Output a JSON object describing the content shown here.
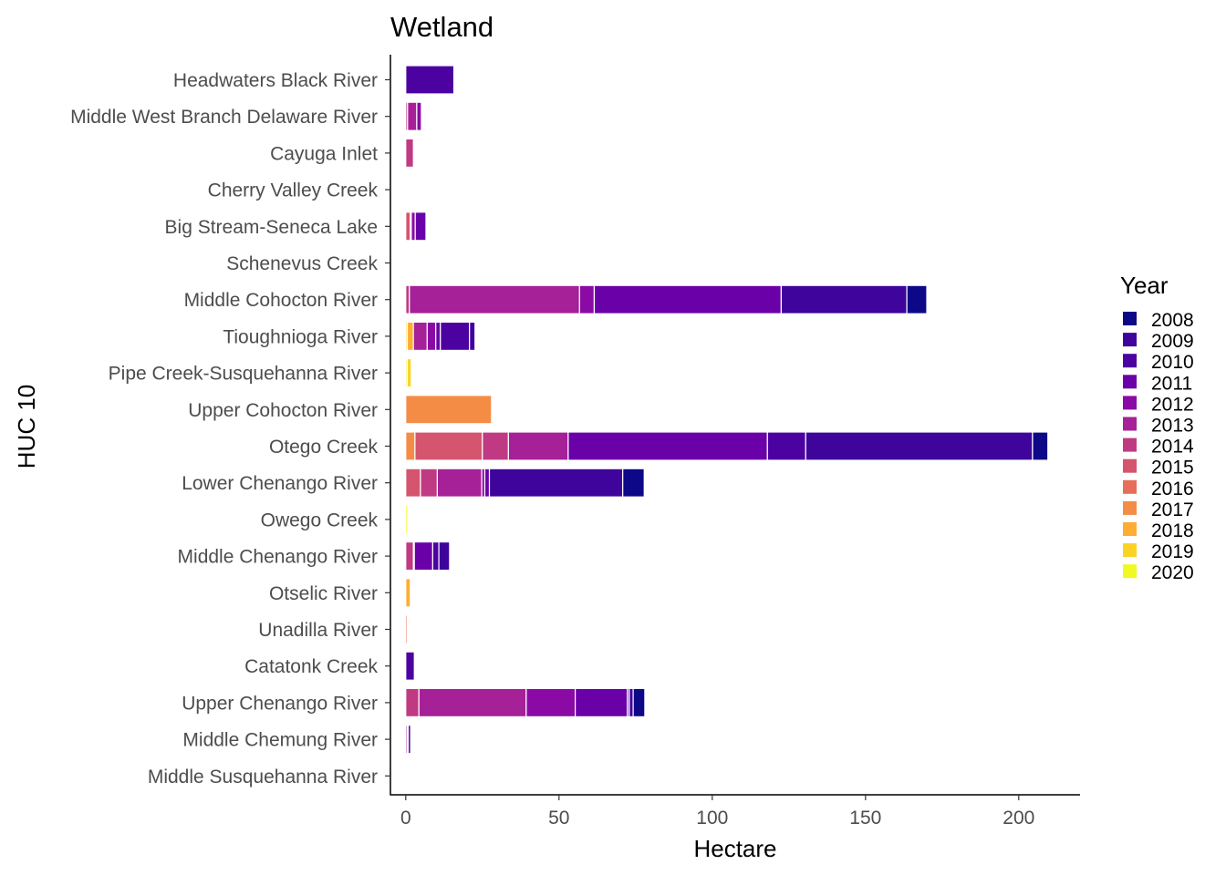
{
  "chart_data": {
    "type": "bar",
    "orientation": "horizontal",
    "stacked": true,
    "title": "Wetland",
    "xlabel": "Hectare",
    "ylabel": "HUC 10",
    "xlim": [
      -5,
      220
    ],
    "xticks": [
      0,
      50,
      100,
      150,
      200
    ],
    "grid": false,
    "legend_position": "right",
    "legend_title": "Year",
    "categories": [
      "Headwaters Black River",
      "Middle West Branch Delaware River",
      "Cayuga Inlet",
      "Cherry Valley Creek",
      "Big Stream-Seneca Lake",
      "Schenevus Creek",
      "Middle Cohocton River",
      "Tioughnioga River",
      "Pipe Creek-Susquehanna River",
      "Upper Cohocton River",
      "Otego Creek",
      "Lower Chenango River",
      "Owego Creek",
      "Middle Chenango River",
      "Otselic River",
      "Unadilla River",
      "Catatonk Creek",
      "Upper Chenango River",
      "Middle Chemung River",
      "Middle Susquehanna River"
    ],
    "series": [
      {
        "name": "2020",
        "color": "#F0F921",
        "values": [
          0,
          0,
          0,
          0,
          0,
          0,
          0,
          0,
          0.5,
          0,
          0,
          0,
          0.6,
          0,
          0,
          0,
          0,
          0,
          0,
          0
        ]
      },
      {
        "name": "2019",
        "color": "#FCD225",
        "values": [
          0,
          0,
          0,
          0,
          0,
          0,
          0,
          0.5,
          1.3,
          0,
          0,
          0,
          0,
          0,
          0,
          0,
          0,
          0,
          0,
          0
        ]
      },
      {
        "name": "2018",
        "color": "#FDAD32",
        "values": [
          0,
          0,
          0,
          0,
          0,
          0,
          0,
          2.0,
          0,
          0,
          0,
          0,
          0,
          0,
          1.5,
          0,
          0,
          0,
          0,
          0
        ]
      },
      {
        "name": "2017",
        "color": "#F58C46",
        "values": [
          0,
          0,
          0,
          0,
          0,
          0,
          0,
          0,
          0,
          28,
          3,
          0,
          0,
          0,
          0,
          0,
          0,
          0,
          0,
          0
        ]
      },
      {
        "name": "2016",
        "color": "#E76F5A",
        "values": [
          0,
          0,
          0,
          0,
          0,
          0,
          0,
          0,
          0,
          0,
          0,
          0,
          0,
          0,
          0,
          0.5,
          0,
          0,
          0,
          0
        ]
      },
      {
        "name": "2015",
        "color": "#D5546E",
        "values": [
          0,
          0,
          0,
          0,
          1.5,
          0,
          0,
          0,
          0,
          0,
          22,
          4.8,
          0,
          0,
          0,
          0,
          0,
          0,
          0,
          0
        ]
      },
      {
        "name": "2014",
        "color": "#C03A83",
        "values": [
          0,
          0.6,
          2.5,
          0,
          0,
          0,
          1.2,
          0,
          0,
          0,
          8.5,
          5.5,
          0,
          2.5,
          0,
          0,
          0,
          4.3,
          0,
          0
        ]
      },
      {
        "name": "2013",
        "color": "#A62098",
        "values": [
          0,
          3.0,
          0,
          0,
          0.3,
          0,
          55.5,
          4.5,
          0,
          0,
          19.5,
          14.5,
          0,
          0.3,
          0,
          0,
          0,
          35,
          0.5,
          0
        ]
      },
      {
        "name": "2012",
        "color": "#8B0AA5",
        "values": [
          0,
          1.5,
          0,
          0,
          1.3,
          0,
          4.8,
          2.8,
          0,
          0,
          0,
          1.0,
          0,
          0,
          0,
          0,
          0,
          16,
          0.3,
          0
        ]
      },
      {
        "name": "2011",
        "color": "#6A00A8",
        "values": [
          0,
          0,
          0,
          0,
          3.5,
          0,
          61,
          1.5,
          0,
          0,
          65,
          1.5,
          0,
          6.0,
          0,
          0,
          0,
          17,
          0,
          0
        ]
      },
      {
        "name": "2010",
        "color": "#4C02A1",
        "values": [
          15.7,
          0,
          0,
          0,
          0,
          0,
          0,
          9.5,
          0,
          0,
          12.5,
          0,
          0,
          2.0,
          0,
          0,
          2.8,
          0.6,
          0.8,
          0
        ]
      },
      {
        "name": "2009",
        "color": "#3E049C",
        "values": [
          0,
          0,
          0,
          0,
          0,
          0,
          41,
          1.8,
          0,
          0,
          74,
          43.5,
          0,
          3.5,
          0,
          0,
          0,
          1.3,
          0,
          0
        ]
      },
      {
        "name": "2008",
        "color": "#0D0887",
        "values": [
          0,
          0,
          0,
          0,
          0,
          0,
          6.5,
          0,
          0,
          0,
          5,
          7.0,
          0,
          0,
          0,
          0,
          0,
          3.8,
          0,
          0
        ]
      }
    ],
    "legend_order": [
      "2008",
      "2009",
      "2010",
      "2011",
      "2012",
      "2013",
      "2014",
      "2015",
      "2016",
      "2017",
      "2018",
      "2019",
      "2020"
    ]
  }
}
